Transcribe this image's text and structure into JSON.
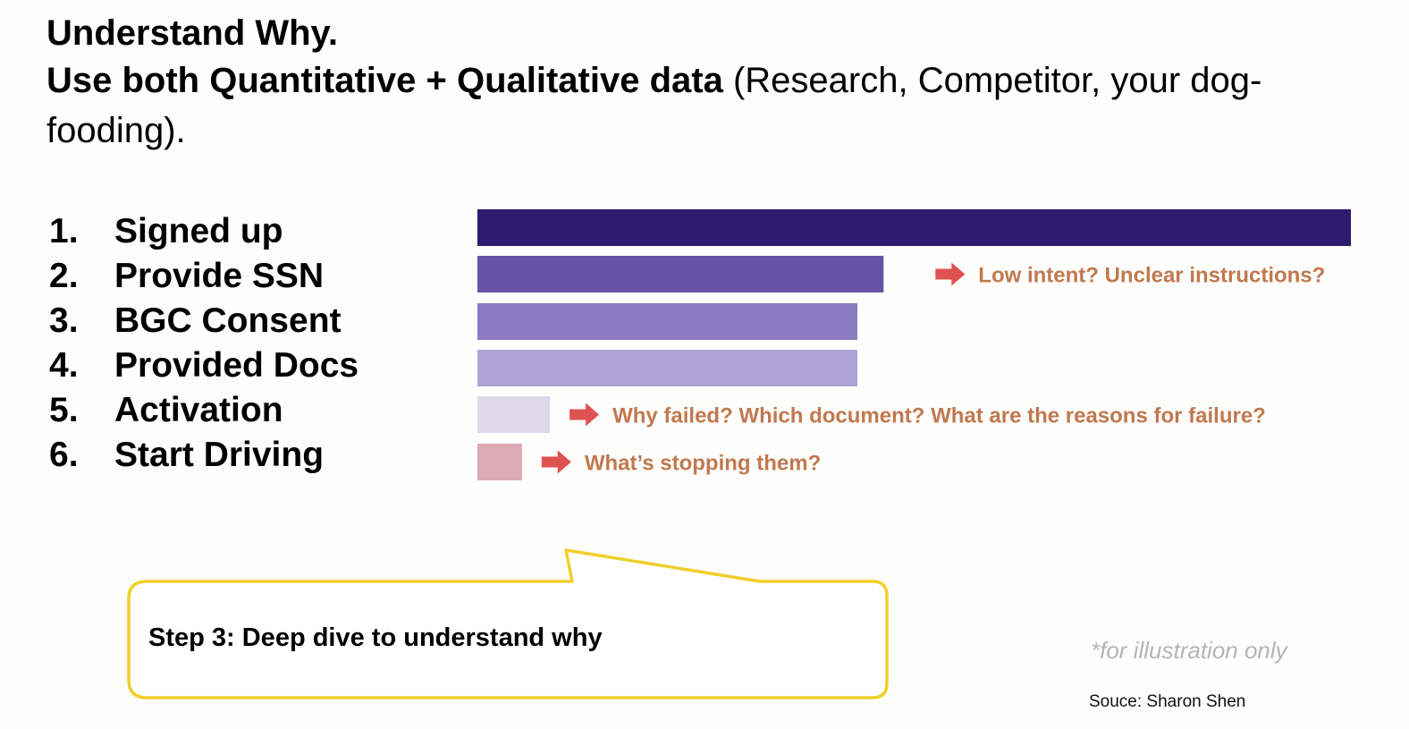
{
  "title": {
    "line1": "Understand Why.",
    "line2_bold": "Use both Quantitative + Qualitative data",
    "line2_rest": " (Research, Competitor, your dog-fooding)."
  },
  "steps": [
    {
      "num": "1.",
      "label": "Signed up"
    },
    {
      "num": "2.",
      "label": "Provide SSN"
    },
    {
      "num": "3.",
      "label": "BGC Consent"
    },
    {
      "num": "4.",
      "label": "Provided Docs"
    },
    {
      "num": "5.",
      "label": "Activation"
    },
    {
      "num": "6.",
      "label": "Start Driving"
    }
  ],
  "chart_data": {
    "type": "bar",
    "orientation": "horizontal",
    "categories": [
      "Signed up",
      "Provide SSN",
      "BGC Consent",
      "Provided Docs",
      "Activation",
      "Start Driving"
    ],
    "values": [
      100,
      46.5,
      43.5,
      43.5,
      8.3,
      5.1
    ],
    "xlim": [
      0,
      100
    ],
    "grid": false,
    "bar_colors": [
      "#2e1a6e",
      "#6653a8",
      "#8a7bc2",
      "#aea4d3",
      "#dcd8ea",
      "#dcaab5"
    ],
    "annotations": [
      {
        "category": "Provide SSN",
        "text": "Low intent? Unclear instructions?"
      },
      {
        "category": "Activation",
        "text": "Why failed? Which document? What are the reasons for failure?"
      },
      {
        "category": "Start Driving",
        "text": "What’s stopping them?"
      }
    ]
  },
  "colors": {
    "annotation_text": "#c0794e",
    "arrow": "#e05252",
    "callout_border": "#f0cf2c"
  },
  "callout": {
    "text": "Step 3: Deep dive to understand why"
  },
  "footnote": "*for illustration only",
  "source": "Souce: Sharon Shen"
}
